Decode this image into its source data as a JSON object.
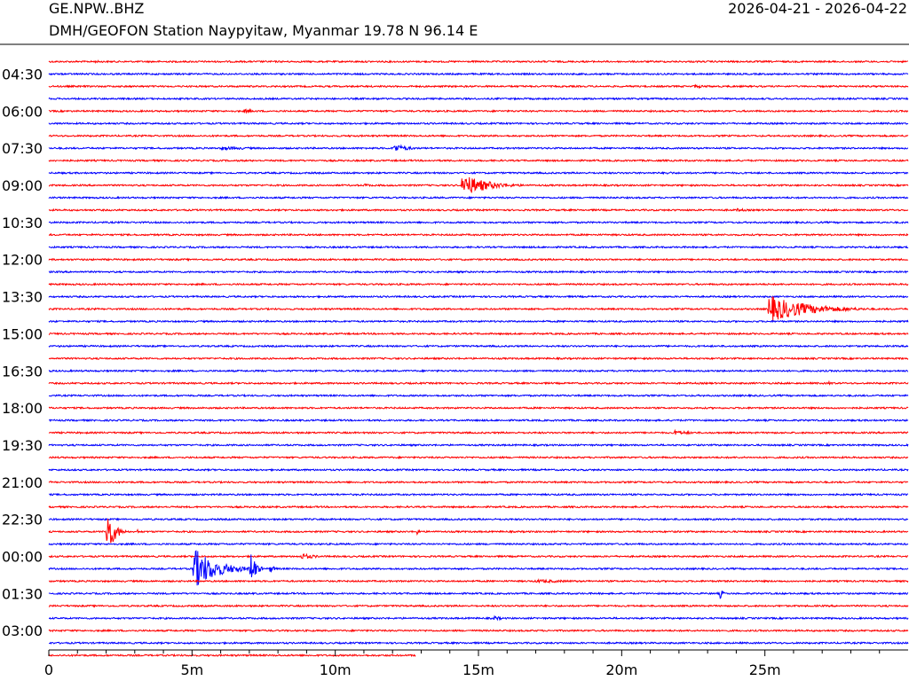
{
  "header": {
    "channel": "GE.NPW..BHZ",
    "station": "DMH/GEOFON Station Naypyitaw, Myanmar  19.78 N 96.14 E",
    "date_range": "2026-04-21 - 2026-04-22"
  },
  "colors": {
    "trace_a": "#ff0000",
    "trace_b": "#0000ff",
    "axis": "#000000"
  },
  "chart_data": {
    "type": "line",
    "title": "",
    "xlabel": "",
    "ylabel": "",
    "x_unit": "minutes",
    "xlim": [
      0,
      30
    ],
    "x_ticks": [
      0,
      5,
      10,
      15,
      20,
      25
    ],
    "x_tick_labels": [
      "0",
      "5m",
      "10m",
      "15m",
      "20m",
      "25m"
    ],
    "minor_x_tick_step": 1,
    "row_minutes": 30,
    "start_time": "03:00",
    "row_count": 49,
    "last_row_end_minute": 12.8,
    "y_tick_labels": [
      "04:30",
      "06:00",
      "07:30",
      "09:00",
      "10:30",
      "12:00",
      "13:30",
      "15:00",
      "16:30",
      "18:00",
      "19:30",
      "21:00",
      "22:30",
      "00:00",
      "01:30",
      "03:00"
    ],
    "y_tick_rows": [
      1,
      4,
      7,
      10,
      13,
      16,
      19,
      22,
      25,
      28,
      31,
      34,
      37,
      40,
      43,
      46
    ],
    "trace_colors_alternate": [
      "#ff0000",
      "#0000ff"
    ],
    "events": [
      {
        "row": 0,
        "start_min": 1.5,
        "duration_min": 2.5,
        "amplitude": 1.5
      },
      {
        "row": 2,
        "start_min": 22.5,
        "duration_min": 2.5,
        "amplitude": 2
      },
      {
        "row": 3,
        "start_min": 11.4,
        "duration_min": 0.5,
        "amplitude": 2
      },
      {
        "row": 4,
        "start_min": 6.8,
        "duration_min": 1.5,
        "amplitude": 2.5
      },
      {
        "row": 5,
        "start_min": 16,
        "duration_min": 2,
        "amplitude": 1
      },
      {
        "row": 6,
        "start_min": 10.5,
        "duration_min": 1.5,
        "amplitude": 1.3
      },
      {
        "row": 7,
        "start_min": 6,
        "duration_min": 4,
        "amplitude": 2.2
      },
      {
        "row": 7,
        "start_min": 12,
        "duration_min": 1.5,
        "amplitude": 5.5
      },
      {
        "row": 9,
        "start_min": 21.5,
        "duration_min": 1.5,
        "amplitude": 2
      },
      {
        "row": 10,
        "start_min": 11,
        "duration_min": 1.2,
        "amplitude": 2
      },
      {
        "row": 10,
        "start_min": 14.4,
        "duration_min": 2.5,
        "amplitude": 14
      },
      {
        "row": 12,
        "start_min": 24,
        "duration_min": 1.5,
        "amplitude": 2
      },
      {
        "row": 20,
        "start_min": 25.1,
        "duration_min": 4,
        "amplitude": 16
      },
      {
        "row": 26,
        "start_min": 27.2,
        "duration_min": 1,
        "amplitude": 2
      },
      {
        "row": 30,
        "start_min": 21.8,
        "duration_min": 2.2,
        "amplitude": 3
      },
      {
        "row": 38,
        "start_min": 2,
        "duration_min": 0.7,
        "amplitude": 34
      },
      {
        "row": 38,
        "start_min": 3.1,
        "duration_min": 0.2,
        "amplitude": 4
      },
      {
        "row": 38,
        "start_min": 12.8,
        "duration_min": 0.4,
        "amplitude": 5
      },
      {
        "row": 40,
        "start_min": 8.8,
        "duration_min": 1.5,
        "amplitude": 4
      },
      {
        "row": 41,
        "start_min": 5,
        "duration_min": 2.3,
        "amplitude": 26
      },
      {
        "row": 41,
        "start_min": 7,
        "duration_min": 0.5,
        "amplitude": 30
      },
      {
        "row": 41,
        "start_min": 7.7,
        "duration_min": 0.5,
        "amplitude": 6
      },
      {
        "row": 42,
        "start_min": 17,
        "duration_min": 6,
        "amplitude": 2
      },
      {
        "row": 43,
        "start_min": 23.4,
        "duration_min": 0.3,
        "amplitude": 9
      },
      {
        "row": 45,
        "start_min": 15.5,
        "duration_min": 1,
        "amplitude": 3
      }
    ]
  }
}
